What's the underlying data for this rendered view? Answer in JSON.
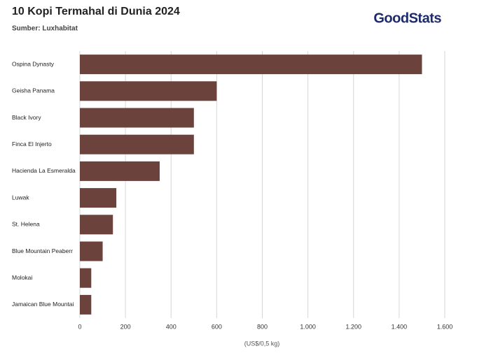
{
  "chart_data": {
    "type": "bar",
    "orientation": "horizontal",
    "title": "10 Kopi Termahal di Dunia 2024",
    "subtitle": "Sumber: Luxhabitat",
    "logo": "GoodStats",
    "x_label": "(US$/0,5 kg)",
    "categories": [
      "Ospina Dynasty",
      "Geisha Panama",
      "Black Ivory",
      "Finca El Injerto",
      "Hacienda La Esmeralda",
      "Luwak",
      "St. Helena",
      "Blue Mountain Peaberr",
      "Molokai",
      "Jamaican Blue Mountai"
    ],
    "values": [
      1500,
      600,
      500,
      500,
      350,
      160,
      145,
      100,
      50,
      50
    ],
    "color": "#6c433c",
    "xlim": [
      0,
      1600
    ],
    "xticks": [
      0,
      200,
      400,
      600,
      800,
      {
        "value": 1000,
        "label": "1.000"
      },
      {
        "value": 1200,
        "label": "1.200"
      },
      {
        "value": 1400,
        "label": "1.400"
      },
      {
        "value": 1600,
        "label": "1.600"
      }
    ],
    "grid": true
  }
}
